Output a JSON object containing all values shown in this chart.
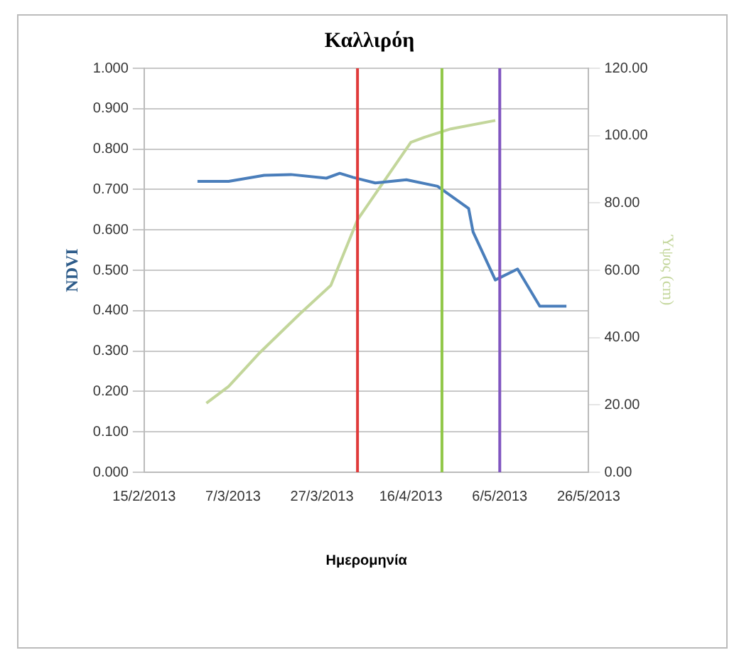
{
  "chart_data": {
    "type": "line",
    "title": "Καλλιρόη",
    "xlabel": "Ημερομηνία",
    "ylabel": "NDVI",
    "y2label": "Ύψος (cm)",
    "series": [
      {
        "color": "#4a7ebb",
        "x": [
          "2013-02-27",
          "2013-03-06",
          "2013-03-14",
          "2013-03-20",
          "2013-03-28",
          "2013-03-31",
          "2013-04-03",
          "2013-04-08",
          "2013-04-15",
          "2013-04-22",
          "2013-04-29",
          "2013-04-30",
          "2013-05-05",
          "2013-05-10",
          "2013-05-15",
          "2013-05-21"
        ],
        "values": [
          0.72,
          0.72,
          0.735,
          0.737,
          0.728,
          0.74,
          0.73,
          0.716,
          0.724,
          0.708,
          0.653,
          0.595,
          0.476,
          0.503,
          0.411,
          0.411
        ]
      },
      {
        "color": "#c3d69b",
        "axis": "y2",
        "x": [
          "2013-03-01",
          "2013-03-06",
          "2013-03-13",
          "2013-03-22",
          "2013-03-29",
          "2013-04-04",
          "2013-04-16",
          "2013-04-19",
          "2013-04-25",
          "2013-05-05"
        ],
        "values": [
          20.5,
          25.5,
          35.5,
          47,
          55.5,
          75,
          98,
          99.5,
          102,
          104.5
        ]
      }
    ],
    "xlim": [
      "2013-02-15",
      "2013-05-26"
    ],
    "xticks": [
      {
        "value": "2013-02-15",
        "label": "15/2/2013"
      },
      {
        "value": "2013-03-07",
        "label": "7/3/2013"
      },
      {
        "value": "2013-03-27",
        "label": "27/3/2013"
      },
      {
        "value": "2013-04-16",
        "label": "16/4/2013"
      },
      {
        "value": "2013-05-06",
        "label": "6/5/2013"
      },
      {
        "value": "2013-05-26",
        "label": "26/5/2013"
      }
    ],
    "ylim": [
      0,
      1
    ],
    "yticks": [
      {
        "value": 0,
        "label": "0.000"
      },
      {
        "value": 0.1,
        "label": "0.100"
      },
      {
        "value": 0.2,
        "label": "0.200"
      },
      {
        "value": 0.3,
        "label": "0.300"
      },
      {
        "value": 0.4,
        "label": "0.400"
      },
      {
        "value": 0.5,
        "label": "0.500"
      },
      {
        "value": 0.6,
        "label": "0.600"
      },
      {
        "value": 0.7,
        "label": "0.700"
      },
      {
        "value": 0.8,
        "label": "0.800"
      },
      {
        "value": 0.9,
        "label": "0.900"
      },
      {
        "value": 1,
        "label": "1.000"
      }
    ],
    "y2lim": [
      0,
      120
    ],
    "y2ticks": [
      {
        "value": 0,
        "label": "0.00"
      },
      {
        "value": 20,
        "label": "20.00"
      },
      {
        "value": 40,
        "label": "40.00"
      },
      {
        "value": 60,
        "label": "60.00"
      },
      {
        "value": 80,
        "label": "80.00"
      },
      {
        "value": 100,
        "label": "100.00"
      },
      {
        "value": 120,
        "label": "120.00"
      }
    ],
    "ref_lines": [
      {
        "axis": "x",
        "value": "2013-04-04",
        "color": "#e03a3a"
      },
      {
        "axis": "x",
        "value": "2013-04-23",
        "color": "#92c84a"
      },
      {
        "axis": "x",
        "value": "2013-05-06",
        "color": "#8055c0"
      }
    ],
    "grid": "y",
    "legend": false,
    "marker": "none",
    "line_style": "solid"
  }
}
